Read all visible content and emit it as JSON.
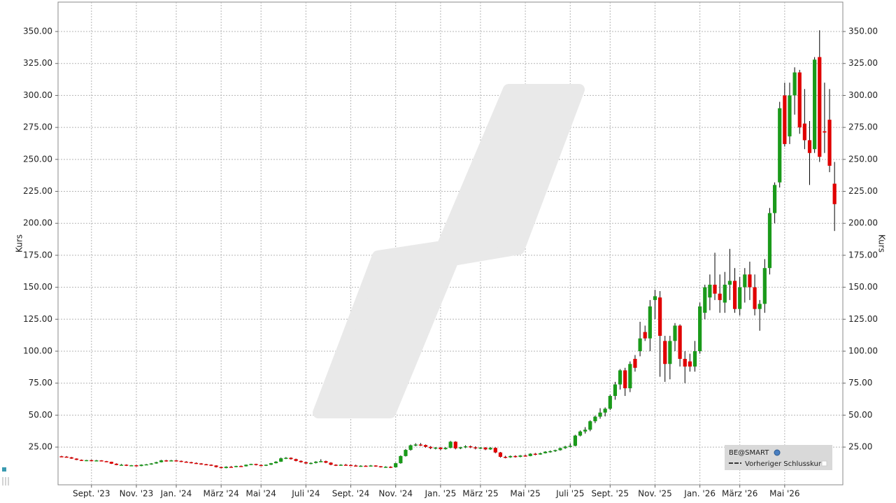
{
  "chart_data": {
    "type": "candlestick",
    "y_axis_label": "Kurs",
    "y2_axis_label": "Kurs",
    "up_color": "#1a9a1a",
    "down_color": "#e00000",
    "wick_color": "#000000",
    "grid": true,
    "legend_items": [
      "BE@SMART",
      "Vorheriger Schlusskurs"
    ],
    "ylim": [
      -4.5,
      373
    ],
    "yticks": [
      {
        "value": 25,
        "label": "25.00"
      },
      {
        "value": 50,
        "label": "50.00"
      },
      {
        "value": 75,
        "label": "75.00"
      },
      {
        "value": 100,
        "label": "100.00"
      },
      {
        "value": 125,
        "label": "125.00"
      },
      {
        "value": 150,
        "label": "150.00"
      },
      {
        "value": 175,
        "label": "175.00"
      },
      {
        "value": 200,
        "label": "200.00"
      },
      {
        "value": 225,
        "label": "225.00"
      },
      {
        "value": 250,
        "label": "250.00"
      },
      {
        "value": 275,
        "label": "275.00"
      },
      {
        "value": 300,
        "label": "300.00"
      },
      {
        "value": 325,
        "label": "325.00"
      },
      {
        "value": 350,
        "label": "350.00"
      }
    ],
    "categories": [
      null,
      null,
      null,
      null,
      null,
      null,
      "Sept. '23",
      null,
      null,
      null,
      null,
      null,
      null,
      null,
      null,
      "Nov. '23",
      null,
      null,
      null,
      null,
      null,
      null,
      null,
      "Jan. '24",
      null,
      null,
      null,
      null,
      null,
      null,
      null,
      null,
      "März '24",
      null,
      null,
      null,
      null,
      null,
      null,
      null,
      "Mai '24",
      null,
      null,
      null,
      null,
      null,
      null,
      null,
      null,
      "Juli '24",
      null,
      null,
      null,
      null,
      null,
      null,
      null,
      null,
      "Sept. '24",
      null,
      null,
      null,
      null,
      null,
      null,
      null,
      null,
      "Nov. '24",
      null,
      null,
      null,
      null,
      null,
      null,
      null,
      null,
      "Jan. '25",
      null,
      null,
      null,
      null,
      null,
      null,
      null,
      "März '25",
      null,
      null,
      null,
      null,
      null,
      null,
      null,
      null,
      "Mai '25",
      null,
      null,
      null,
      null,
      null,
      null,
      null,
      null,
      "Juli '25",
      null,
      null,
      null,
      null,
      null,
      null,
      null,
      "Sept. '25",
      null,
      null,
      null,
      null,
      null,
      null,
      null,
      null,
      "Nov. '25",
      null,
      null,
      null,
      null,
      null,
      null,
      null,
      null,
      "Jan. '26",
      null,
      null,
      null,
      null,
      null,
      null,
      null,
      "März '26",
      null,
      null,
      null,
      null,
      null,
      null,
      null,
      null,
      "Mai '26",
      null,
      null,
      null,
      null,
      null,
      null,
      null,
      null,
      null,
      null,
      null
    ],
    "ohlc": [
      [
        17.8,
        18.2,
        17.2,
        17.5
      ],
      [
        17.5,
        18,
        16.8,
        17
      ],
      [
        17,
        17.3,
        15.8,
        16
      ],
      [
        16,
        16.2,
        14.8,
        15
      ],
      [
        15,
        15.3,
        14.2,
        14.5
      ],
      [
        14.5,
        15,
        14,
        14.8
      ],
      [
        14.8,
        15.2,
        14.2,
        14.5
      ],
      [
        14.5,
        15,
        14,
        14.6
      ],
      [
        14.6,
        14.8,
        13.8,
        14
      ],
      [
        14,
        14.2,
        13.2,
        13.5
      ],
      [
        13.5,
        13.6,
        11.8,
        12
      ],
      [
        12,
        12.3,
        10.8,
        11
      ],
      [
        11,
        11.8,
        10.5,
        11.2
      ],
      [
        11.2,
        11.5,
        10.2,
        10.5
      ],
      [
        10.5,
        11,
        10,
        10.8
      ],
      [
        10.8,
        11,
        9.8,
        10.2
      ],
      [
        10.2,
        11.5,
        10,
        11.2
      ],
      [
        11.2,
        11.8,
        10.8,
        11.5
      ],
      [
        11.5,
        12.5,
        11.2,
        12.2
      ],
      [
        12.2,
        13.5,
        12,
        13.2
      ],
      [
        13.2,
        15,
        13,
        14.6
      ],
      [
        14.6,
        15,
        13.6,
        14
      ],
      [
        14,
        15,
        13.8,
        14.6
      ],
      [
        14.6,
        15,
        13.8,
        14.2
      ],
      [
        14.2,
        14.5,
        13.2,
        13.6
      ],
      [
        13.6,
        14,
        12.8,
        13.2
      ],
      [
        13.2,
        13.5,
        12.2,
        12.6
      ],
      [
        12.6,
        13,
        11.8,
        12.2
      ],
      [
        12.2,
        12.5,
        11.2,
        11.6
      ],
      [
        11.6,
        11.9,
        10.8,
        11.2
      ],
      [
        11.2,
        11.5,
        10.2,
        10.6
      ],
      [
        10.6,
        10.8,
        9,
        9.4
      ],
      [
        9.4,
        9.8,
        8.2,
        8.6
      ],
      [
        8.6,
        10,
        8.4,
        9.6
      ],
      [
        9.6,
        10.2,
        9,
        9.4
      ],
      [
        9.4,
        10.4,
        9.2,
        10.2
      ],
      [
        10.2,
        10.6,
        9.6,
        10
      ],
      [
        10,
        11.4,
        9.8,
        11.2
      ],
      [
        11.2,
        12,
        11,
        11.8
      ],
      [
        11.8,
        12,
        10.6,
        11
      ],
      [
        11,
        11.4,
        10,
        10.4
      ],
      [
        10.4,
        11.4,
        10.2,
        11.2
      ],
      [
        11.2,
        12.6,
        11,
        12.4
      ],
      [
        12.4,
        14,
        12.2,
        13.6
      ],
      [
        13.6,
        16.8,
        13.4,
        16.2
      ],
      [
        16.2,
        17.2,
        15.6,
        16.6
      ],
      [
        16.6,
        17,
        15.2,
        15.6
      ],
      [
        15.6,
        16,
        13.8,
        14.2
      ],
      [
        14.2,
        14.6,
        12.8,
        13.2
      ],
      [
        13.2,
        13.6,
        11.8,
        12.2
      ],
      [
        12.2,
        13,
        11.6,
        12.6
      ],
      [
        12.6,
        14,
        12.2,
        13.6
      ],
      [
        13.6,
        15.5,
        13.2,
        14
      ],
      [
        14,
        14.4,
        12.4,
        12.8
      ],
      [
        12.8,
        13.2,
        10.8,
        11.2
      ],
      [
        11.2,
        11.6,
        10.2,
        10.8
      ],
      [
        10.8,
        11.6,
        10.4,
        11.2
      ],
      [
        11.2,
        11.8,
        10.6,
        11
      ],
      [
        11,
        11.4,
        10.2,
        10.6
      ],
      [
        10.6,
        11.2,
        9.8,
        10.2
      ],
      [
        10.2,
        10.8,
        9.6,
        10.4
      ],
      [
        10.4,
        10.8,
        9.8,
        10.2
      ],
      [
        10.2,
        11,
        9.8,
        10.6
      ],
      [
        10.6,
        10.8,
        9.6,
        10
      ],
      [
        10,
        10.2,
        9,
        9.4
      ],
      [
        9.4,
        10,
        8.8,
        9.6
      ],
      [
        9.6,
        10,
        8.6,
        9.2
      ],
      [
        9.2,
        12.8,
        9,
        12.4
      ],
      [
        12.4,
        18.5,
        12,
        18
      ],
      [
        18,
        23.5,
        17.6,
        22.8
      ],
      [
        22.8,
        27,
        22.2,
        26.4
      ],
      [
        26.4,
        28,
        25.6,
        27
      ],
      [
        27,
        28.2,
        25.8,
        26.6
      ],
      [
        26.6,
        27,
        24.6,
        25.2
      ],
      [
        25.2,
        25.8,
        23.4,
        24.2
      ],
      [
        24.2,
        25,
        23.2,
        24.6
      ],
      [
        24.6,
        25.2,
        22.6,
        23.4
      ],
      [
        23.4,
        25,
        23,
        24.4
      ],
      [
        24.4,
        29.8,
        24,
        29.2
      ],
      [
        29.2,
        29.6,
        23.2,
        24
      ],
      [
        24,
        25.2,
        23.4,
        24.8
      ],
      [
        24.8,
        26.4,
        24.2,
        25.6
      ],
      [
        25.6,
        26.2,
        24.2,
        24.8
      ],
      [
        24.8,
        25.6,
        23.2,
        24
      ],
      [
        24,
        25,
        23.4,
        24.6
      ],
      [
        24.6,
        25,
        22.6,
        23.2
      ],
      [
        23.2,
        25,
        22.8,
        24.4
      ],
      [
        24.4,
        24.8,
        20.2,
        20.8
      ],
      [
        20.8,
        21.2,
        16.8,
        17.4
      ],
      [
        17.4,
        18.2,
        16.2,
        17
      ],
      [
        17,
        18.4,
        16.6,
        18
      ],
      [
        18,
        18.6,
        16.8,
        17.4
      ],
      [
        17.4,
        18.8,
        17,
        18.4
      ],
      [
        18.4,
        19.2,
        17.6,
        18
      ],
      [
        18,
        20.2,
        17.8,
        19.8
      ],
      [
        19.8,
        20.4,
        18.6,
        19.2
      ],
      [
        19.2,
        20.6,
        19,
        20.2
      ],
      [
        20.2,
        21.8,
        20,
        21.4
      ],
      [
        21.4,
        22.4,
        20.6,
        21.8
      ],
      [
        21.8,
        23,
        21.2,
        22.6
      ],
      [
        22.6,
        24.6,
        22.2,
        24.2
      ],
      [
        24.2,
        26,
        23.6,
        25.4
      ],
      [
        25.4,
        28,
        24.8,
        26
      ],
      [
        26,
        34.6,
        25.6,
        34
      ],
      [
        34,
        38,
        33.4,
        37.2
      ],
      [
        37.2,
        40.6,
        35.6,
        38.6
      ],
      [
        38.6,
        46,
        37.4,
        45.2
      ],
      [
        45.2,
        49.6,
        43.8,
        48.8
      ],
      [
        48.8,
        55.4,
        47.2,
        52
      ],
      [
        52,
        56,
        49,
        55
      ],
      [
        55,
        66,
        54,
        65
      ],
      [
        65,
        76,
        62,
        74
      ],
      [
        74,
        86,
        70,
        85
      ],
      [
        85,
        87,
        65,
        71
      ],
      [
        71,
        92,
        68,
        90
      ],
      [
        94,
        97,
        84,
        87
      ],
      [
        100,
        123,
        96,
        110
      ],
      [
        115,
        120,
        108,
        110
      ],
      [
        110,
        140,
        100,
        135
      ],
      [
        140,
        148,
        125,
        143
      ],
      [
        142,
        147,
        80,
        112
      ],
      [
        108,
        112,
        76,
        90
      ],
      [
        90,
        112,
        78,
        108
      ],
      [
        108,
        122,
        100,
        120
      ],
      [
        120,
        121,
        88,
        94
      ],
      [
        94,
        100,
        75,
        88
      ],
      [
        92,
        98,
        84,
        88
      ],
      [
        88,
        108,
        84,
        100
      ],
      [
        100,
        138,
        98,
        135
      ],
      [
        130,
        152,
        125,
        150
      ],
      [
        142,
        160,
        132,
        152
      ],
      [
        152,
        177,
        140,
        145
      ],
      [
        145,
        160,
        130,
        140
      ],
      [
        138,
        162,
        130,
        152
      ],
      [
        152,
        180,
        140,
        155
      ],
      [
        155,
        165,
        130,
        133
      ],
      [
        133,
        158,
        128,
        150
      ],
      [
        150,
        165,
        138,
        160
      ],
      [
        160,
        170,
        140,
        150
      ],
      [
        150,
        160,
        128,
        133
      ],
      [
        133,
        140,
        116,
        137
      ],
      [
        137,
        172,
        130,
        165
      ],
      [
        165,
        212,
        160,
        208
      ],
      [
        208,
        232,
        200,
        230
      ],
      [
        232,
        295,
        228,
        290
      ],
      [
        300,
        310,
        260,
        262
      ],
      [
        268,
        310,
        262,
        300
      ],
      [
        300,
        322,
        285,
        318
      ],
      [
        318,
        320,
        270,
        275
      ],
      [
        278,
        305,
        258,
        265
      ],
      [
        265,
        280,
        230,
        255
      ],
      [
        258,
        330,
        255,
        328
      ],
      [
        330,
        351,
        248,
        252
      ],
      [
        272,
        310,
        255,
        271
      ],
      [
        281,
        305,
        240,
        245
      ],
      [
        231,
        248,
        194,
        215
      ]
    ]
  }
}
